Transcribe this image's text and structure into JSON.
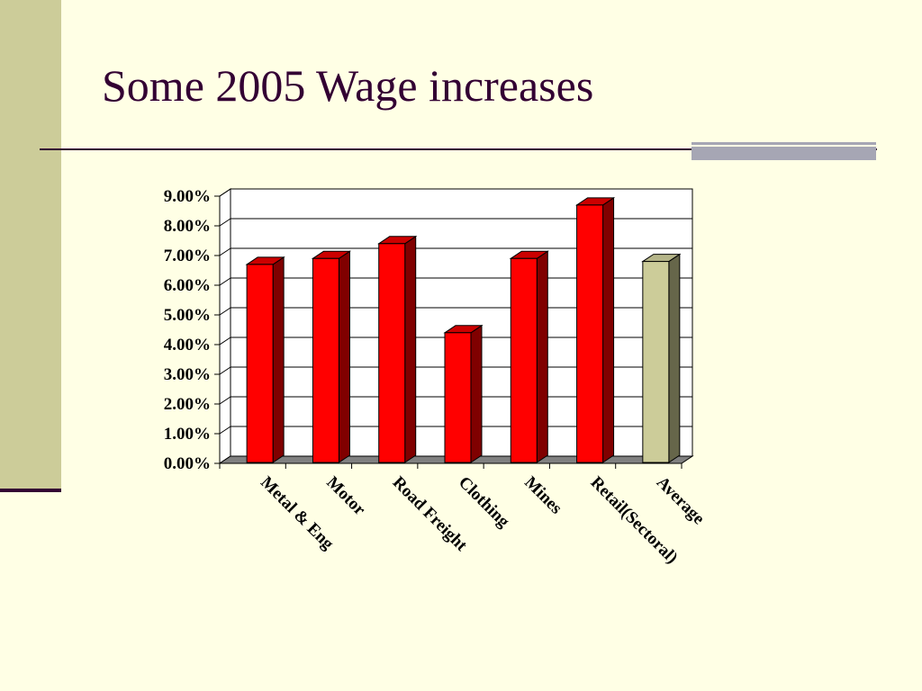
{
  "slide": {
    "title": "Some 2005 Wage increases"
  },
  "colors": {
    "background": "#ffffe5",
    "side_bar": "#cccc99",
    "title": "#330033",
    "bar_front": "#ff0000",
    "bar_top": "#cc0000",
    "bar_side": "#800000",
    "average_front": "#cccc99",
    "average_top": "#b4b488",
    "average_side": "#66664a",
    "floor": "#808080"
  },
  "chart_data": {
    "type": "bar",
    "title": "",
    "xlabel": "",
    "ylabel": "",
    "ylim": [
      0,
      9
    ],
    "y_ticks": [
      "0.00%",
      "1.00%",
      "2.00%",
      "3.00%",
      "4.00%",
      "5.00%",
      "6.00%",
      "7.00%",
      "8.00%",
      "9.00%"
    ],
    "grid": true,
    "legend": "none",
    "style": "3d-column",
    "categories": [
      "Metal & Eng",
      "Motor",
      "Road Freight",
      "Clothing",
      "Mines",
      "Retail(Sectoral)",
      "Average"
    ],
    "series": [
      {
        "values": [
          6.7,
          6.9,
          7.4,
          4.4,
          6.9,
          8.7,
          6.8
        ]
      }
    ],
    "highlight_category": "Average"
  }
}
